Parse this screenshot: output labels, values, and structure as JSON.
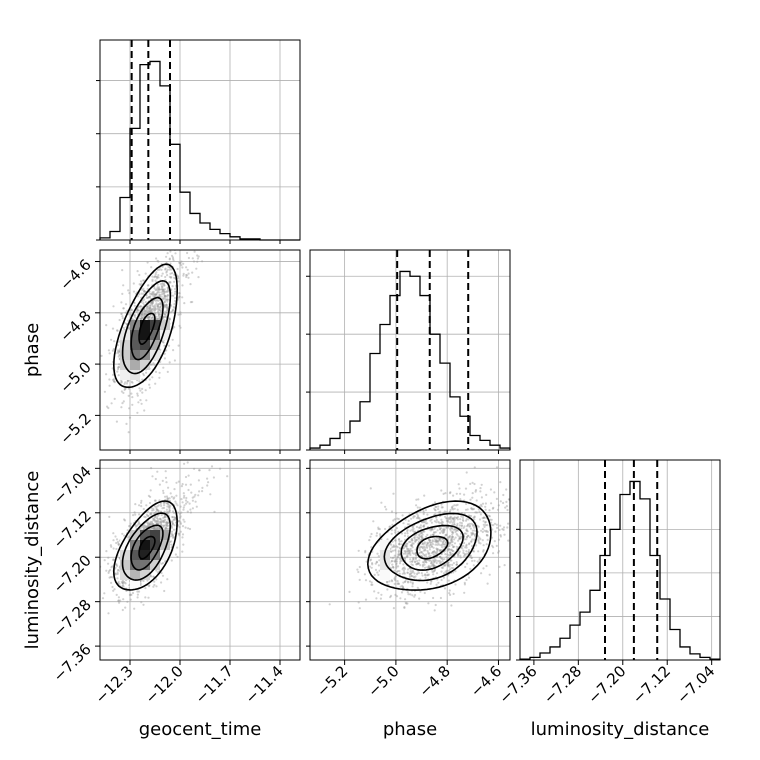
{
  "chart_data": {
    "type": "corner",
    "grid": true,
    "parameters": [
      {
        "key": "geocent_time",
        "label": "geocent_time",
        "range": [
          -12.48,
          -11.28
        ],
        "ticks": [
          -12.3,
          -12.0,
          -11.7,
          -11.4
        ],
        "tick_labels": [
          "−12.3",
          "−12.0",
          "−11.7",
          "−11.4"
        ],
        "quantiles": [
          -12.29,
          -12.19,
          -12.06
        ],
        "mean": -12.2,
        "sd": 0.095
      },
      {
        "key": "phase",
        "label": "phase",
        "range": [
          -5.335,
          -4.555
        ],
        "ticks": [
          -5.2,
          -5.0,
          -4.8,
          -4.6
        ],
        "tick_labels": [
          "−5.2",
          "−5.0",
          "−4.8",
          "−4.6"
        ],
        "quantiles": [
          -4.995,
          -4.868,
          -4.718
        ],
        "mean": -4.86,
        "sd": 0.12
      },
      {
        "key": "luminosity_distance",
        "label": "luminosity_distance",
        "range": [
          -7.385,
          -7.025
        ],
        "ticks": [
          -7.36,
          -7.28,
          -7.2,
          -7.12,
          -7.04
        ],
        "tick_labels": [
          "−7.36",
          "−7.28",
          "−7.20",
          "−7.12",
          "−7.04"
        ],
        "quantiles": [
          -7.232,
          -7.18,
          -7.138
        ],
        "mean": -7.182,
        "sd": 0.04
      }
    ],
    "histograms": [
      {
        "parameter": "geocent_time",
        "bin_edges": [
          -12.48,
          -12.42,
          -12.36,
          -12.3,
          -12.24,
          -12.18,
          -12.12,
          -12.06,
          -12.0,
          -11.94,
          -11.88,
          -11.82,
          -11.76,
          -11.7,
          -11.64,
          -11.58,
          -11.52,
          -11.46,
          -11.4,
          -11.34,
          -11.28
        ],
        "counts": [
          2,
          8,
          40,
          105,
          165,
          168,
          145,
          90,
          45,
          25,
          16,
          10,
          6,
          3,
          1,
          1,
          0,
          0,
          0,
          0
        ],
        "y_ticks": [
          0,
          50,
          100,
          150
        ]
      },
      {
        "parameter": "phase",
        "bin_edges": [
          -5.335,
          -5.296,
          -5.257,
          -5.218,
          -5.179,
          -5.14,
          -5.101,
          -5.062,
          -5.023,
          -4.984,
          -4.945,
          -4.906,
          -4.867,
          -4.828,
          -4.789,
          -4.75,
          -4.711,
          -4.672,
          -4.633,
          -4.594,
          -4.555
        ],
        "counts": [
          2,
          5,
          12,
          18,
          30,
          50,
          100,
          130,
          160,
          185,
          180,
          160,
          120,
          90,
          55,
          35,
          15,
          10,
          5,
          2
        ],
        "y_ticks": [
          0,
          60,
          120,
          180
        ]
      },
      {
        "parameter": "luminosity_distance",
        "bin_edges": [
          -7.385,
          -7.367,
          -7.349,
          -7.331,
          -7.313,
          -7.295,
          -7.277,
          -7.259,
          -7.241,
          -7.223,
          -7.205,
          -7.187,
          -7.169,
          -7.151,
          -7.133,
          -7.115,
          -7.097,
          -7.079,
          -7.061,
          -7.043,
          -7.025
        ],
        "counts": [
          1,
          3,
          8,
          15,
          25,
          40,
          55,
          80,
          120,
          150,
          190,
          205,
          185,
          120,
          70,
          35,
          15,
          7,
          3,
          1
        ],
        "y_ticks": [
          0,
          50,
          100,
          150
        ]
      }
    ],
    "pairs": [
      {
        "x": "geocent_time",
        "y": "phase",
        "correlation": 0.6
      },
      {
        "x": "geocent_time",
        "y": "luminosity_distance",
        "correlation": 0.55
      },
      {
        "x": "phase",
        "y": "luminosity_distance",
        "correlation": 0.35
      }
    ],
    "contour_levels_sigma": [
      0.5,
      1.0,
      1.5,
      2.0
    ]
  }
}
